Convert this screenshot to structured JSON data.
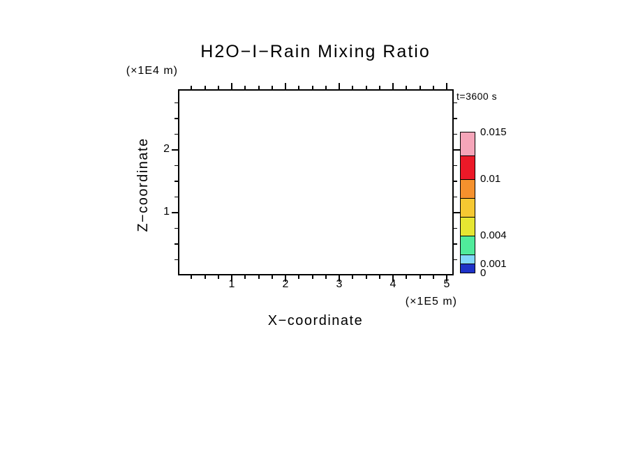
{
  "chart_data": {
    "type": "heatmap",
    "title": "H2O−I−Rain Mixing Ratio",
    "xlabel": "X−coordinate",
    "ylabel": "Z−coordinate",
    "x_unit_label": "(×1E5 m)",
    "y_unit_label": "(×1E4 m)",
    "time_label": "t=3600 s",
    "x_axis": {
      "min": 0,
      "max": 5.13,
      "major_ticks": [
        1,
        2,
        3,
        4,
        5
      ],
      "minor_tick_interval": 0.25
    },
    "y_axis": {
      "min": 0,
      "max": 2.97,
      "major_ticks": [
        1,
        2
      ],
      "minor_tick_interval": 0.25
    },
    "grid": false,
    "data_points": [],
    "field_note": "plot area is empty — no rain mixing ratio contours visible at this time",
    "colorbar": {
      "levels": [
        0,
        0.001,
        0.002,
        0.004,
        0.006,
        0.008,
        0.01,
        0.0125,
        0.015
      ],
      "colors": [
        "#1e32c8",
        "#82d7fa",
        "#50eb9b",
        "#e6e632",
        "#f5c832",
        "#f5912d",
        "#eb1928",
        "#f5a5b9"
      ],
      "labeled_levels": [
        0,
        0.001,
        0.004,
        0.01,
        0.015
      ],
      "label_texts": [
        "0",
        "0.001",
        "0.004",
        "0.01",
        "0.015"
      ]
    }
  }
}
